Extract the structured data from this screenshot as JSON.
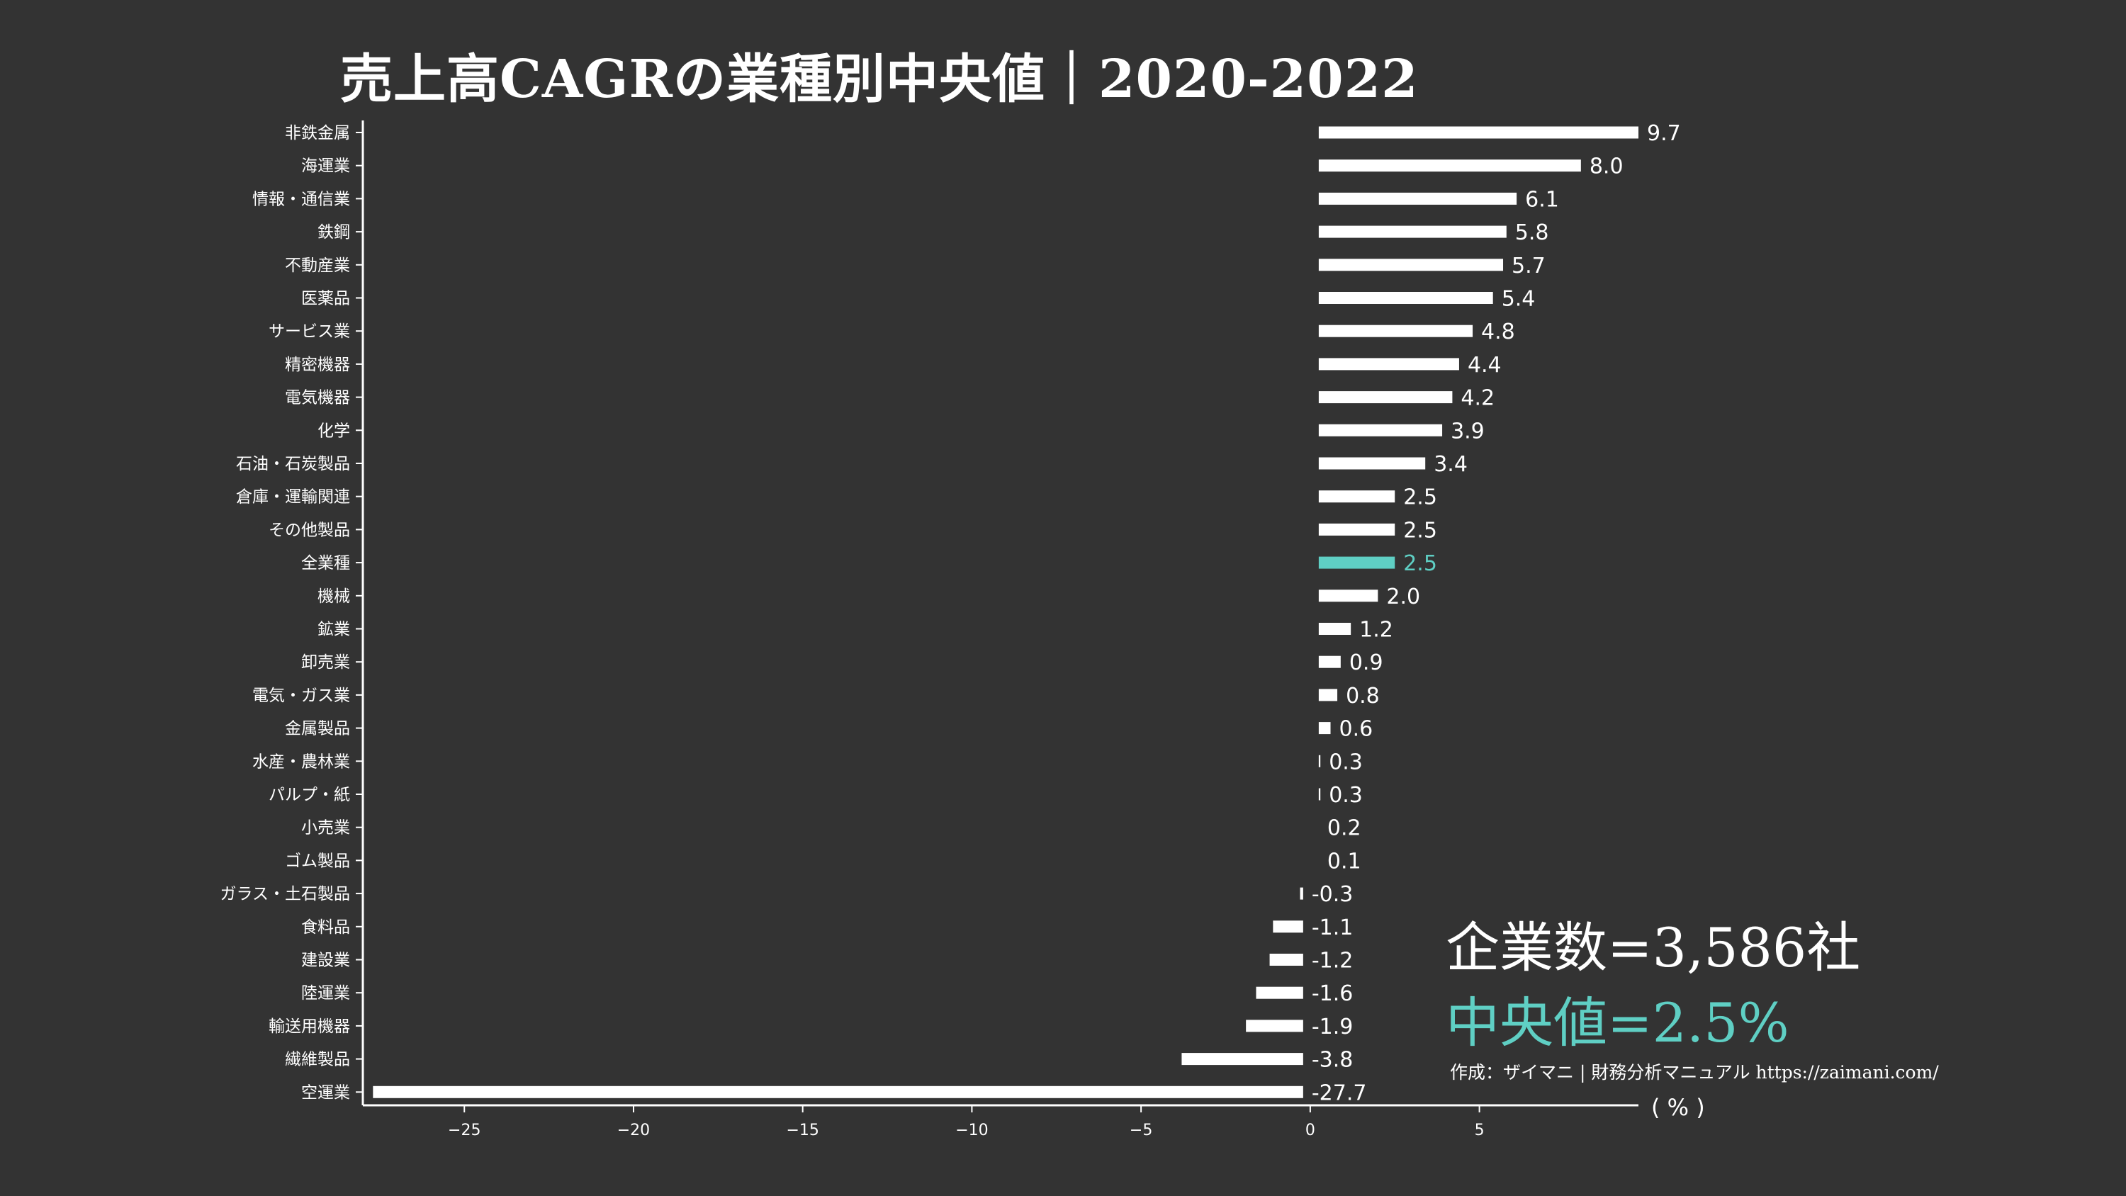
{
  "colors": {
    "background": "#333333",
    "bar": "#ffffff",
    "highlight": "#5fcfc4",
    "text": "#ffffff"
  },
  "annotations": {
    "company_count": "企業数=3,586社",
    "median": "中央値=2.5%",
    "source": "作成：ザイマニ | 財務分析マニュアル https://zaimani.com/",
    "unit": "( % )"
  },
  "chart_data": {
    "type": "bar",
    "orientation": "horizontal",
    "title": "売上高CAGRの業種別中央値｜2020-2022",
    "xlabel": "( % )",
    "ylabel": "",
    "xlim": [
      -28,
      9.7
    ],
    "xticks": [
      -25,
      -20,
      -15,
      -10,
      -5,
      0,
      5
    ],
    "highlight_category": "全業種",
    "grid": false,
    "categories": [
      "非鉄金属",
      "海運業",
      "情報・通信業",
      "鉄鋼",
      "不動産業",
      "医薬品",
      "サービス業",
      "精密機器",
      "電気機器",
      "化学",
      "石油・石炭製品",
      "倉庫・運輸関連",
      "その他製品",
      "全業種",
      "機械",
      "鉱業",
      "卸売業",
      "電気・ガス業",
      "金属製品",
      "水産・農林業",
      "パルプ・紙",
      "小売業",
      "ゴム製品",
      "ガラス・土石製品",
      "食料品",
      "建設業",
      "陸運業",
      "輸送用機器",
      "繊維製品",
      "空運業"
    ],
    "values": [
      9.7,
      8.0,
      6.1,
      5.8,
      5.7,
      5.4,
      4.8,
      4.4,
      4.2,
      3.9,
      3.4,
      2.5,
      2.5,
      2.5,
      2.0,
      1.2,
      0.9,
      0.8,
      0.6,
      0.3,
      0.3,
      0.2,
      0.1,
      -0.3,
      -1.1,
      -1.2,
      -1.6,
      -1.9,
      -3.8,
      -27.7
    ],
    "value_labels": [
      "9.7",
      "8.0",
      "6.1",
      "5.8",
      "5.7",
      "5.4",
      "4.8",
      "4.4",
      "4.2",
      "3.9",
      "3.4",
      "2.5",
      "2.5",
      "2.5",
      "2.0",
      "1.2",
      "0.9",
      "0.8",
      "0.6",
      "0.3",
      "0.3",
      "0.2",
      "0.1",
      "-0.3",
      "-1.1",
      "-1.2",
      "-1.6",
      "-1.9",
      "-3.8",
      "-27.7"
    ]
  }
}
